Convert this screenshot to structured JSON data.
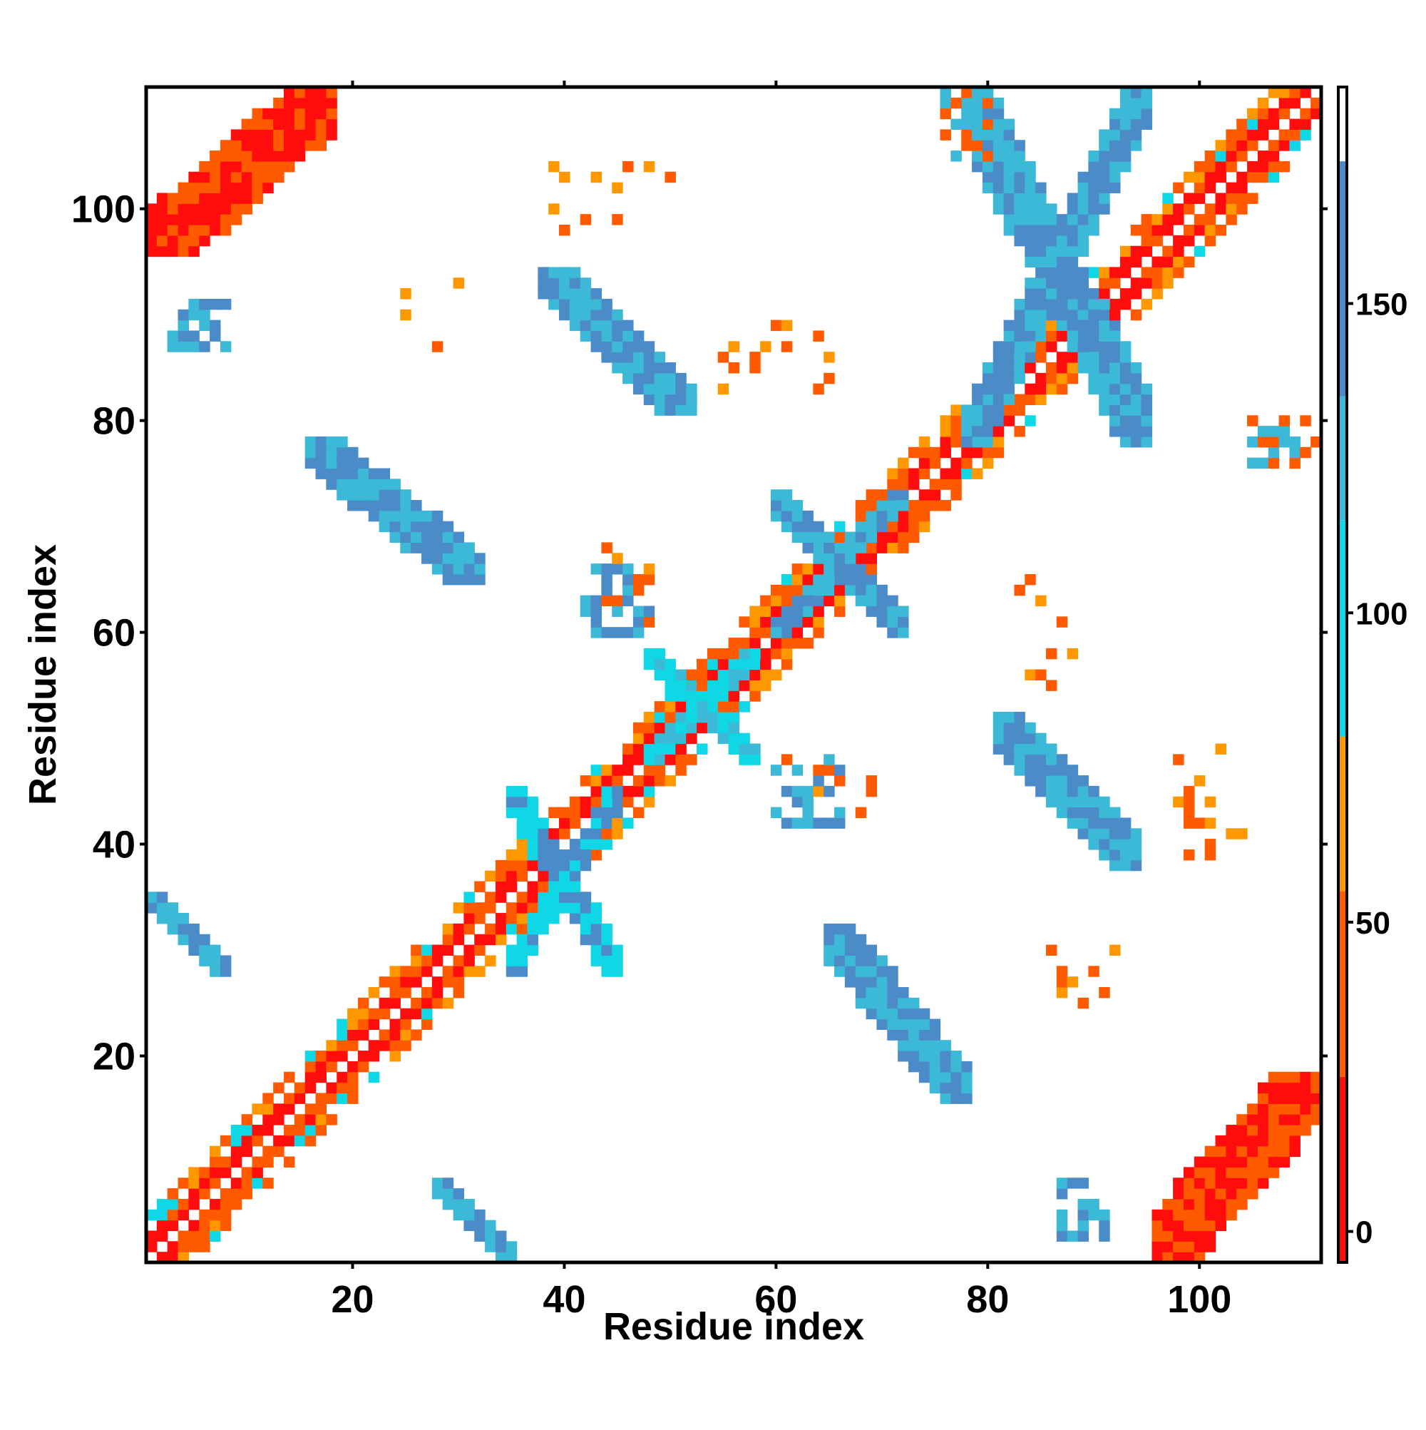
{
  "chart_data": {
    "type": "heatmap",
    "title": "",
    "xlabel": "Residue index",
    "ylabel": "Residue index",
    "xlim": [
      0.5,
      111.5
    ],
    "ylim": [
      0.5,
      111.5
    ],
    "x_ticks": [
      20,
      40,
      60,
      80,
      100
    ],
    "y_ticks": [
      20,
      40,
      60,
      80,
      100
    ],
    "grid": false,
    "legend": "right",
    "colorbar": {
      "ticks": [
        0,
        50,
        100,
        150
      ],
      "range": [
        -5,
        185
      ],
      "bands": [
        {
          "from": -5,
          "to": 25,
          "color": "#ff0d0d"
        },
        {
          "from": 25,
          "to": 55,
          "color": "#ff5a00"
        },
        {
          "from": 55,
          "to": 80,
          "color": "#ff9800"
        },
        {
          "from": 80,
          "to": 115,
          "color": "#10d7e5"
        },
        {
          "from": 115,
          "to": 135,
          "color": "#3cb9d6"
        },
        {
          "from": 135,
          "to": 173,
          "color": "#4b8cc8"
        },
        {
          "from": 173,
          "to": 185,
          "color": "#ffffff"
        }
      ]
    },
    "regions": [
      {
        "i": [
          1,
          111
        ],
        "j": [
          1,
          111
        ],
        "pattern": "diagonal-band",
        "width": 4,
        "values": [
          10,
          40,
          70,
          100
        ]
      },
      {
        "i": [
          1,
          18
        ],
        "j": [
          96,
          111
        ],
        "pattern": "parallel",
        "values": [
          5,
          40
        ]
      },
      {
        "i": [
          96,
          111
        ],
        "j": [
          1,
          18
        ],
        "pattern": "parallel",
        "values": [
          5,
          40
        ]
      },
      {
        "i": [
          28,
          35
        ],
        "j": [
          1,
          8
        ],
        "pattern": "anti",
        "values": [
          120,
          150
        ]
      },
      {
        "i": [
          1,
          8
        ],
        "j": [
          28,
          35
        ],
        "pattern": "anti",
        "values": [
          120,
          150
        ]
      },
      {
        "i": [
          16,
          32
        ],
        "j": [
          65,
          78
        ],
        "pattern": "anti",
        "values": [
          120,
          150
        ]
      },
      {
        "i": [
          65,
          78
        ],
        "j": [
          16,
          32
        ],
        "pattern": "anti",
        "values": [
          120,
          150
        ]
      },
      {
        "i": [
          38,
          52
        ],
        "j": [
          81,
          94
        ],
        "pattern": "anti",
        "values": [
          120,
          150
        ]
      },
      {
        "i": [
          81,
          94
        ],
        "j": [
          38,
          52
        ],
        "pattern": "anti",
        "values": [
          120,
          150
        ]
      },
      {
        "i": [
          60,
          72
        ],
        "j": [
          60,
          73
        ],
        "pattern": "cross",
        "values": [
          120,
          150
        ]
      },
      {
        "i": [
          78,
          95
        ],
        "j": [
          78,
          111
        ],
        "pattern": "cross",
        "values": [
          120,
          150
        ]
      },
      {
        "i": [
          35,
          45
        ],
        "j": [
          28,
          45
        ],
        "pattern": "cross",
        "values": [
          100,
          150
        ]
      },
      {
        "i": [
          48,
          58
        ],
        "j": [
          48,
          58
        ],
        "pattern": "cross",
        "values": [
          100,
          130
        ]
      },
      {
        "i": [
          3,
          8
        ],
        "j": [
          87,
          91
        ],
        "pattern": "patch",
        "values": [
          120,
          150
        ]
      },
      {
        "i": [
          87,
          91
        ],
        "j": [
          3,
          8
        ],
        "pattern": "patch",
        "values": [
          120,
          150
        ]
      },
      {
        "i": [
          60,
          66
        ],
        "j": [
          42,
          48
        ],
        "pattern": "patch",
        "values": [
          120,
          150
        ]
      },
      {
        "i": [
          42,
          48
        ],
        "j": [
          60,
          66
        ],
        "pattern": "patch",
        "values": [
          120,
          150
        ]
      },
      {
        "i": [
          76,
          80
        ],
        "j": [
          105,
          111
        ],
        "pattern": "patch",
        "values": [
          50,
          120
        ]
      },
      {
        "i": [
          105,
          111
        ],
        "j": [
          76,
          80
        ],
        "pattern": "patch",
        "values": [
          50,
          120
        ]
      },
      {
        "i": [
          25,
          30
        ],
        "j": [
          86,
          93
        ],
        "pattern": "scatter",
        "values": [
          30,
          70
        ]
      },
      {
        "i": [
          86,
          93
        ],
        "j": [
          25,
          30
        ],
        "pattern": "scatter",
        "values": [
          30,
          70
        ]
      },
      {
        "i": [
          41,
          50
        ],
        "j": [
          98,
          104
        ],
        "pattern": "scatter",
        "values": [
          30,
          70
        ]
      },
      {
        "i": [
          98,
          104
        ],
        "j": [
          41,
          50
        ],
        "pattern": "scatter",
        "values": [
          30,
          70
        ]
      },
      {
        "i": [
          55,
          65
        ],
        "j": [
          83,
          89
        ],
        "pattern": "scatter",
        "values": [
          30,
          70
        ]
      },
      {
        "i": [
          83,
          89
        ],
        "j": [
          55,
          65
        ],
        "pattern": "scatter",
        "values": [
          30,
          70
        ]
      },
      {
        "i": [
          43,
          48
        ],
        "j": [
          61,
          69
        ],
        "pattern": "scatter",
        "values": [
          30,
          70
        ]
      },
      {
        "i": [
          61,
          69
        ],
        "j": [
          43,
          48
        ],
        "pattern": "scatter",
        "values": [
          30,
          70
        ]
      },
      {
        "i": [
          98,
          104
        ],
        "j": [
          39,
          48
        ],
        "pattern": "scatter",
        "values": [
          40,
          70
        ]
      },
      {
        "i": [
          39,
          48
        ],
        "j": [
          98,
          104
        ],
        "pattern": "scatter",
        "values": [
          40,
          70
        ]
      }
    ]
  }
}
